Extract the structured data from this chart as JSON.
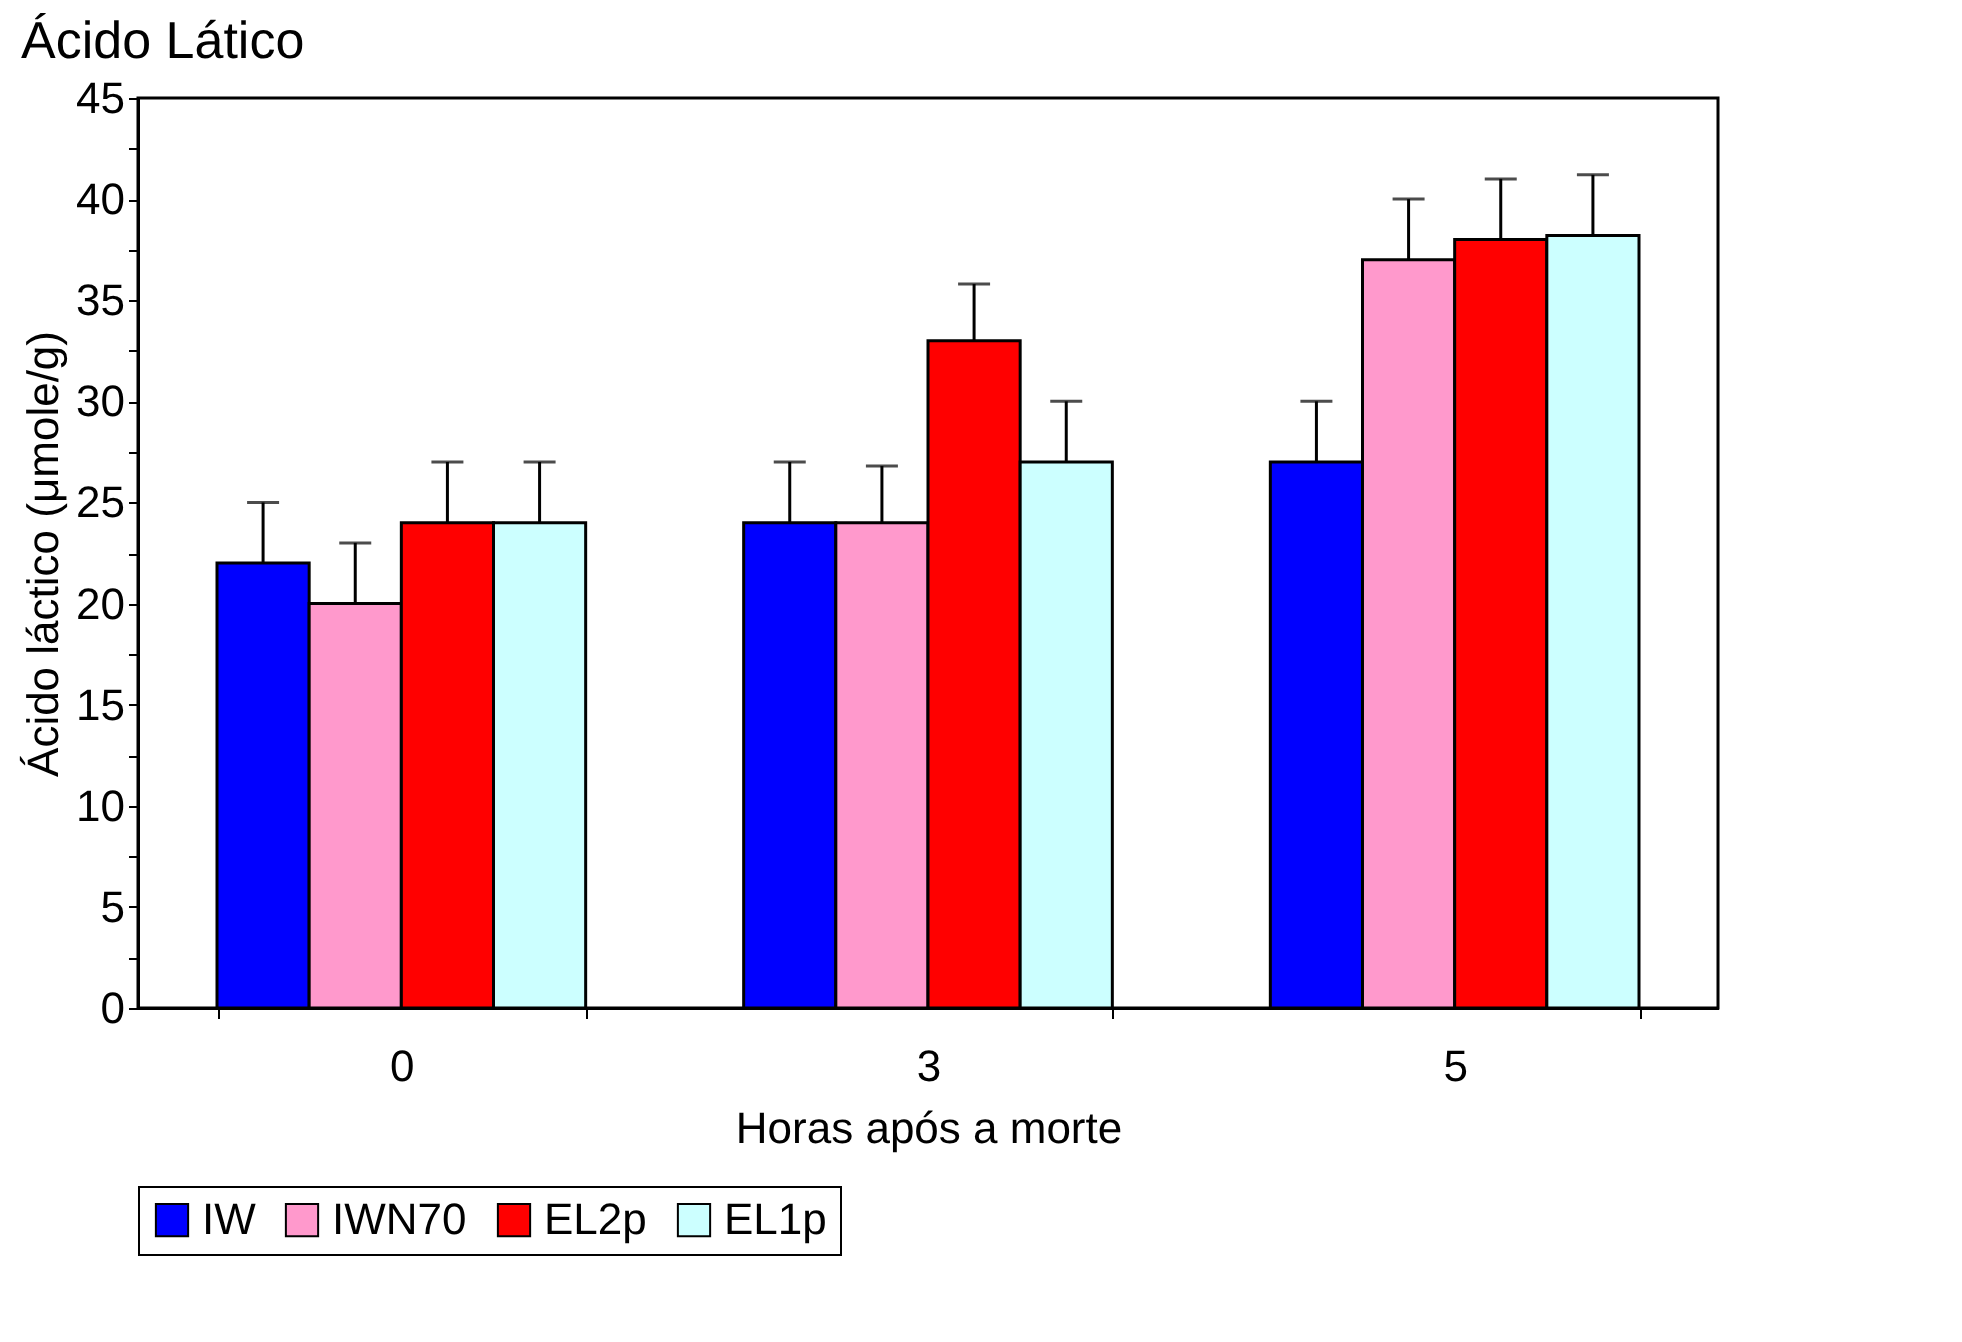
{
  "chart_data": {
    "type": "bar",
    "title": "Ácido Lático",
    "xlabel": "Horas após a morte",
    "ylabel": "Ácido láctico (μmole/g)",
    "categories": [
      "0",
      "3",
      "5"
    ],
    "series": [
      {
        "name": "IW",
        "color": "#0000ff",
        "values": [
          22,
          24,
          27
        ],
        "errors": [
          [
            22,
            25
          ],
          [
            24,
            27
          ],
          [
            27,
            30
          ]
        ]
      },
      {
        "name": "IWN70",
        "color": "#ff99cc",
        "values": [
          20,
          24,
          37
        ],
        "errors": [
          [
            20,
            23
          ],
          [
            24,
            26.8
          ],
          [
            37,
            40
          ]
        ]
      },
      {
        "name": "EL2p",
        "color": "#ff0000",
        "values": [
          24,
          33,
          38
        ],
        "errors": [
          [
            24,
            27
          ],
          [
            33,
            35.8
          ],
          [
            38,
            41
          ]
        ]
      },
      {
        "name": "EL1p",
        "color": "#ccffff",
        "values": [
          24,
          27,
          38.2
        ],
        "errors": [
          [
            24,
            27
          ],
          [
            27,
            30
          ],
          [
            38.2,
            41.2
          ]
        ]
      }
    ],
    "ylim": [
      0,
      45
    ],
    "yticks": [
      0,
      {
        "value": 2.5,
        "label": null
      },
      5,
      {
        "value": 7.5,
        "label": null
      },
      10,
      {
        "value": 12.5,
        "label": null
      },
      15,
      {
        "value": 17.5,
        "label": null
      },
      20,
      {
        "value": 22.5,
        "label": null
      },
      25,
      {
        "value": 27.5,
        "label": null
      },
      30,
      {
        "value": 32.5,
        "label": null
      },
      35,
      {
        "value": 37.5,
        "label": null
      },
      40,
      {
        "value": 42.5,
        "label": null
      },
      45
    ],
    "legend": "bottom",
    "grid": false
  }
}
